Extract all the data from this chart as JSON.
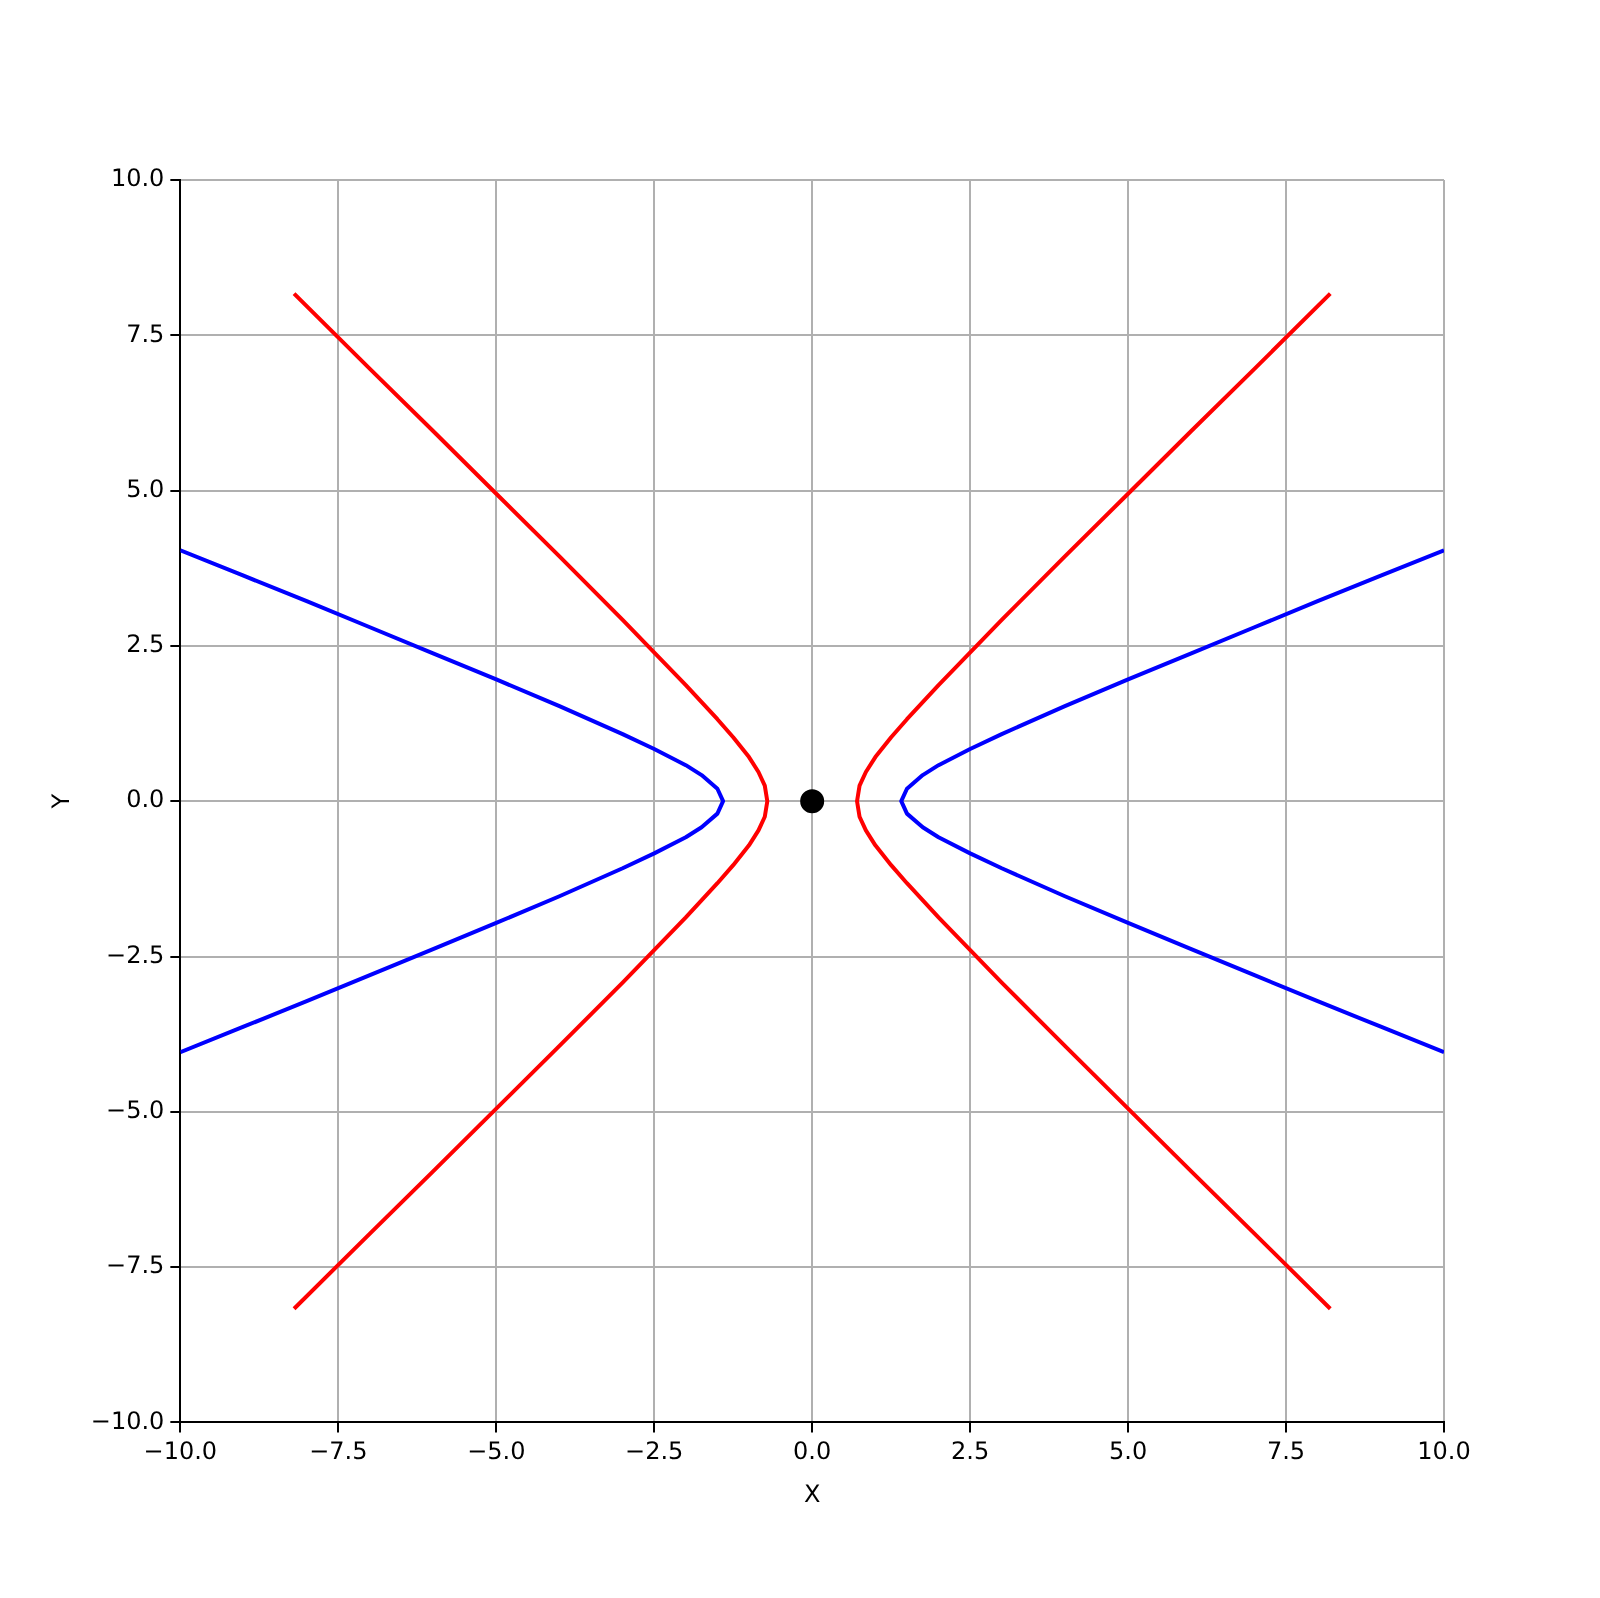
{
  "chart_data": {
    "type": "line",
    "xlabel": "X",
    "ylabel": "Y",
    "xlim": [
      -10,
      10
    ],
    "ylim": [
      -10,
      10
    ],
    "xticks": [
      {
        "value": -10,
        "label": "−10.0"
      },
      {
        "value": -7.5,
        "label": "−7.5"
      },
      {
        "value": -5,
        "label": "−5.0"
      },
      {
        "value": -2.5,
        "label": "−2.5"
      },
      {
        "value": 0,
        "label": "0.0"
      },
      {
        "value": 2.5,
        "label": "2.5"
      },
      {
        "value": 5,
        "label": "5.0"
      },
      {
        "value": 7.5,
        "label": "7.5"
      },
      {
        "value": 10,
        "label": "10.0"
      }
    ],
    "yticks": [
      {
        "value": -10,
        "label": "−10.0"
      },
      {
        "value": -7.5,
        "label": "−7.5"
      },
      {
        "value": -5,
        "label": "−5.0"
      },
      {
        "value": -2.5,
        "label": "−2.5"
      },
      {
        "value": 0,
        "label": "0.0"
      },
      {
        "value": 2.5,
        "label": "2.5"
      },
      {
        "value": 5,
        "label": "5.0"
      },
      {
        "value": 7.5,
        "label": "7.5"
      },
      {
        "value": 10,
        "label": "10.0"
      }
    ],
    "grid": true,
    "line_style": "solid",
    "series": [
      {
        "color": "#0000ff",
        "x": [
          10,
          9,
          8,
          7,
          6,
          5,
          4,
          3,
          2.5,
          2,
          1.75,
          1.5,
          1.41,
          1.5,
          1.75,
          2,
          2.5,
          3,
          4,
          5,
          6,
          7,
          8,
          9,
          10
        ],
        "values": [
          -4.04,
          -3.63,
          -3.22,
          -2.8,
          -2.38,
          -1.96,
          -1.53,
          -1.08,
          -0.84,
          -0.58,
          -0.42,
          -0.2,
          0,
          0.2,
          0.42,
          0.58,
          0.84,
          1.08,
          1.53,
          1.96,
          2.38,
          2.8,
          3.22,
          3.63,
          4.04
        ]
      },
      {
        "color": "#0000ff",
        "x": [
          -10,
          -9,
          -8,
          -7,
          -6,
          -5,
          -4,
          -3,
          -2.5,
          -2,
          -1.75,
          -1.5,
          -1.41,
          -1.5,
          -1.75,
          -2,
          -2.5,
          -3,
          -4,
          -5,
          -6,
          -7,
          -8,
          -9,
          -10
        ],
        "values": [
          -4.04,
          -3.63,
          -3.22,
          -2.8,
          -2.38,
          -1.96,
          -1.53,
          -1.08,
          -0.84,
          -0.58,
          -0.42,
          -0.2,
          0,
          0.2,
          0.42,
          0.58,
          0.84,
          1.08,
          1.53,
          1.96,
          2.38,
          2.8,
          3.22,
          3.63,
          4.04
        ]
      },
      {
        "color": "#ff0000",
        "x": [
          8.2,
          7,
          6,
          5,
          4,
          3,
          2,
          1.5,
          1.25,
          1,
          0.85,
          0.75,
          0.71,
          0.75,
          0.85,
          1,
          1.25,
          1.5,
          2,
          3,
          4,
          5,
          6,
          7,
          8.2
        ],
        "values": [
          -8.17,
          -6.96,
          -5.96,
          -4.95,
          -3.94,
          -2.92,
          -1.87,
          -1.32,
          -1.03,
          -0.71,
          -0.47,
          -0.25,
          0,
          0.25,
          0.47,
          0.71,
          1.03,
          1.32,
          1.87,
          2.92,
          3.94,
          4.95,
          5.96,
          6.96,
          8.17
        ]
      },
      {
        "color": "#ff0000",
        "x": [
          -8.2,
          -7,
          -6,
          -5,
          -4,
          -3,
          -2,
          -1.5,
          -1.25,
          -1,
          -0.85,
          -0.75,
          -0.71,
          -0.75,
          -0.85,
          -1,
          -1.25,
          -1.5,
          -2,
          -3,
          -4,
          -5,
          -6,
          -7,
          -8.2
        ],
        "values": [
          -8.17,
          -6.96,
          -5.96,
          -4.95,
          -3.94,
          -2.92,
          -1.87,
          -1.32,
          -1.03,
          -0.71,
          -0.47,
          -0.25,
          0,
          0.25,
          0.47,
          0.71,
          1.03,
          1.32,
          1.87,
          2.92,
          3.94,
          4.95,
          5.96,
          6.96,
          8.17
        ]
      },
      {
        "type": "scatter",
        "color": "#000000",
        "marker": "circle",
        "x": [
          0
        ],
        "values": [
          0
        ]
      }
    ]
  }
}
